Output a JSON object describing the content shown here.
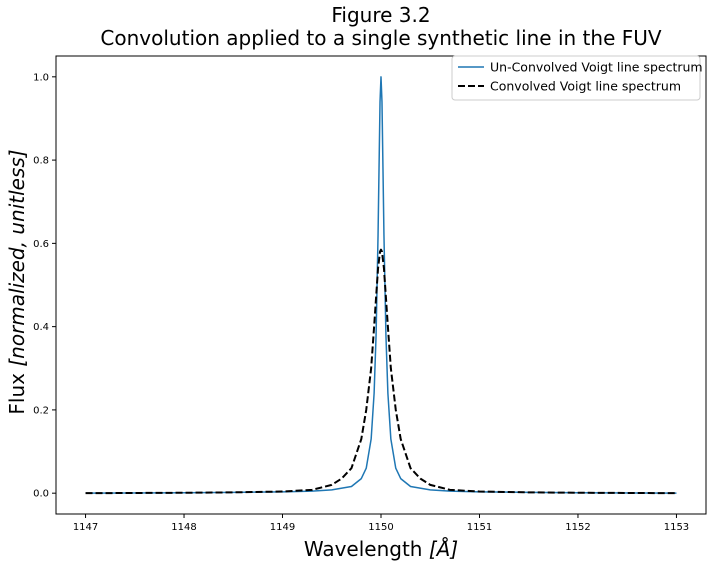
{
  "chart_data": {
    "type": "line",
    "title": "Figure 3.2",
    "subtitle": "Convolution applied to a single synthetic line in the FUV",
    "xlabel_main": "Wavelength ",
    "xlabel_unit": "[Å]",
    "ylabel_main": "Flux ",
    "ylabel_unit": "[normalized, unitless]",
    "xlim": [
      1146.7,
      1153.3
    ],
    "ylim": [
      -0.05,
      1.05
    ],
    "x_ticks": [
      1147,
      1148,
      1149,
      1150,
      1151,
      1152,
      1153
    ],
    "x_tick_labels": [
      "1147",
      "1148",
      "1149",
      "1150",
      "1151",
      "1152",
      "1153"
    ],
    "y_ticks": [
      0.0,
      0.2,
      0.4,
      0.6,
      0.8,
      1.0
    ],
    "y_tick_labels": [
      "0.0",
      "0.2",
      "0.4",
      "0.6",
      "0.8",
      "1.0"
    ],
    "legend_position": "top-right",
    "series": [
      {
        "name": "Un-Convolved Voigt line spectrum",
        "color": "#1f77b4",
        "style": "solid",
        "x": [
          1147.0,
          1148.0,
          1148.5,
          1149.0,
          1149.3,
          1149.5,
          1149.7,
          1149.8,
          1149.85,
          1149.9,
          1149.93,
          1149.95,
          1149.97,
          1149.98,
          1149.99,
          1150.0,
          1150.01,
          1150.02,
          1150.03,
          1150.05,
          1150.07,
          1150.1,
          1150.15,
          1150.2,
          1150.3,
          1150.5,
          1150.7,
          1151.0,
          1151.5,
          1152.0,
          1153.0
        ],
        "y": [
          0.0,
          0.001,
          0.002,
          0.003,
          0.005,
          0.008,
          0.016,
          0.035,
          0.06,
          0.13,
          0.24,
          0.38,
          0.62,
          0.78,
          0.94,
          1.0,
          0.94,
          0.78,
          0.62,
          0.38,
          0.24,
          0.13,
          0.06,
          0.035,
          0.016,
          0.008,
          0.005,
          0.003,
          0.002,
          0.001,
          0.0
        ]
      },
      {
        "name": "Convolved Voigt line spectrum",
        "color": "#000000",
        "style": "dashed",
        "x": [
          1147.0,
          1148.0,
          1148.5,
          1149.0,
          1149.3,
          1149.5,
          1149.6,
          1149.7,
          1149.8,
          1149.85,
          1149.9,
          1149.93,
          1149.95,
          1149.97,
          1149.99,
          1150.0,
          1150.01,
          1150.03,
          1150.05,
          1150.07,
          1150.1,
          1150.15,
          1150.2,
          1150.3,
          1150.4,
          1150.5,
          1150.7,
          1151.0,
          1151.5,
          1152.0,
          1153.0
        ],
        "y": [
          0.0,
          0.001,
          0.002,
          0.004,
          0.008,
          0.02,
          0.035,
          0.06,
          0.13,
          0.2,
          0.3,
          0.4,
          0.47,
          0.54,
          0.58,
          0.585,
          0.58,
          0.54,
          0.47,
          0.4,
          0.3,
          0.2,
          0.13,
          0.06,
          0.035,
          0.02,
          0.008,
          0.004,
          0.002,
          0.001,
          0.0
        ]
      }
    ]
  }
}
